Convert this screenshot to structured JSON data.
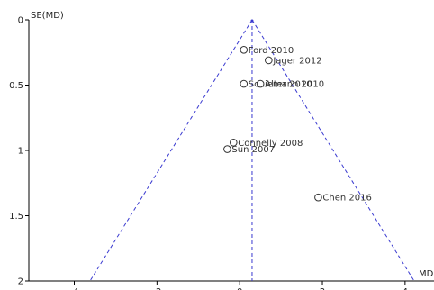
{
  "chart_data": {
    "type": "scatter",
    "xlabel": "MD",
    "ylabel": "SE(MD)",
    "xlim": [
      -5.1,
      4.7
    ],
    "ylim": [
      0,
      2
    ],
    "y_inverted": true,
    "xticks": [
      -4,
      -2,
      0,
      2,
      4
    ],
    "yticks": [
      0,
      0.5,
      1,
      1.5,
      2
    ],
    "grid": false,
    "pooled_effect": 0.3,
    "funnel_color": "#3a3ad0",
    "marker_color": "#333333",
    "points": [
      {
        "label": "Ford 2010",
        "x": 0.1,
        "y": 0.23
      },
      {
        "label": "Jager 2012",
        "x": 0.7,
        "y": 0.31
      },
      {
        "label": "Schiemann 2010",
        "x": 0.1,
        "y": 0.49
      },
      {
        "label": "Alter 2010",
        "x": 0.5,
        "y": 0.49
      },
      {
        "label": "Connelly 2008",
        "x": -0.15,
        "y": 0.94
      },
      {
        "label": "Sun 2007",
        "x": -0.3,
        "y": 0.99
      },
      {
        "label": "Chen 2016",
        "x": 1.9,
        "y": 1.36
      }
    ]
  }
}
